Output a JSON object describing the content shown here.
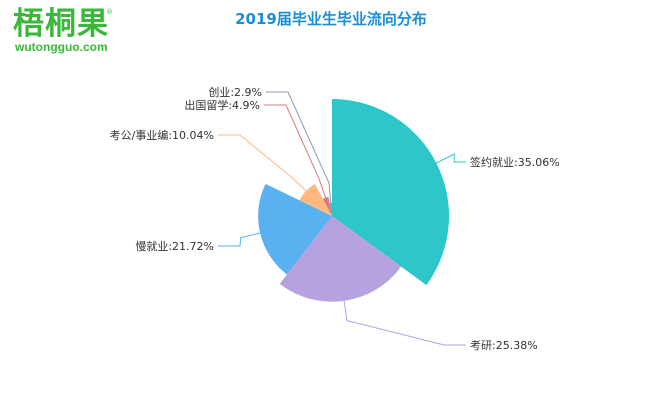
{
  "logo": {
    "brand": "梧桐果",
    "registered": "®",
    "url": "wutongguo.com",
    "color": "#3ab83a"
  },
  "chart_data": {
    "type": "pie",
    "variant": "nightingale-rose (radius by value)",
    "title": "2019届毕业生毕业流向分布",
    "title_color": "#1a8ed8",
    "slices": [
      {
        "label": "签约就业:35.06%",
        "value": 35.06,
        "color": "#2ec7c9"
      },
      {
        "label": "考研:25.38%",
        "value": 25.38,
        "color": "#b6a2de"
      },
      {
        "label": "慢就业:21.72%",
        "value": 21.72,
        "color": "#5ab1ef"
      },
      {
        "label": "考公/事业编:10.04%",
        "value": 10.04,
        "color": "#ffb980"
      },
      {
        "label": "出国留学:4.9%",
        "value": 4.9,
        "color": "#d87a80"
      },
      {
        "label": "创业:2.9%",
        "value": 2.9,
        "color": "#8d98b3"
      }
    ]
  }
}
